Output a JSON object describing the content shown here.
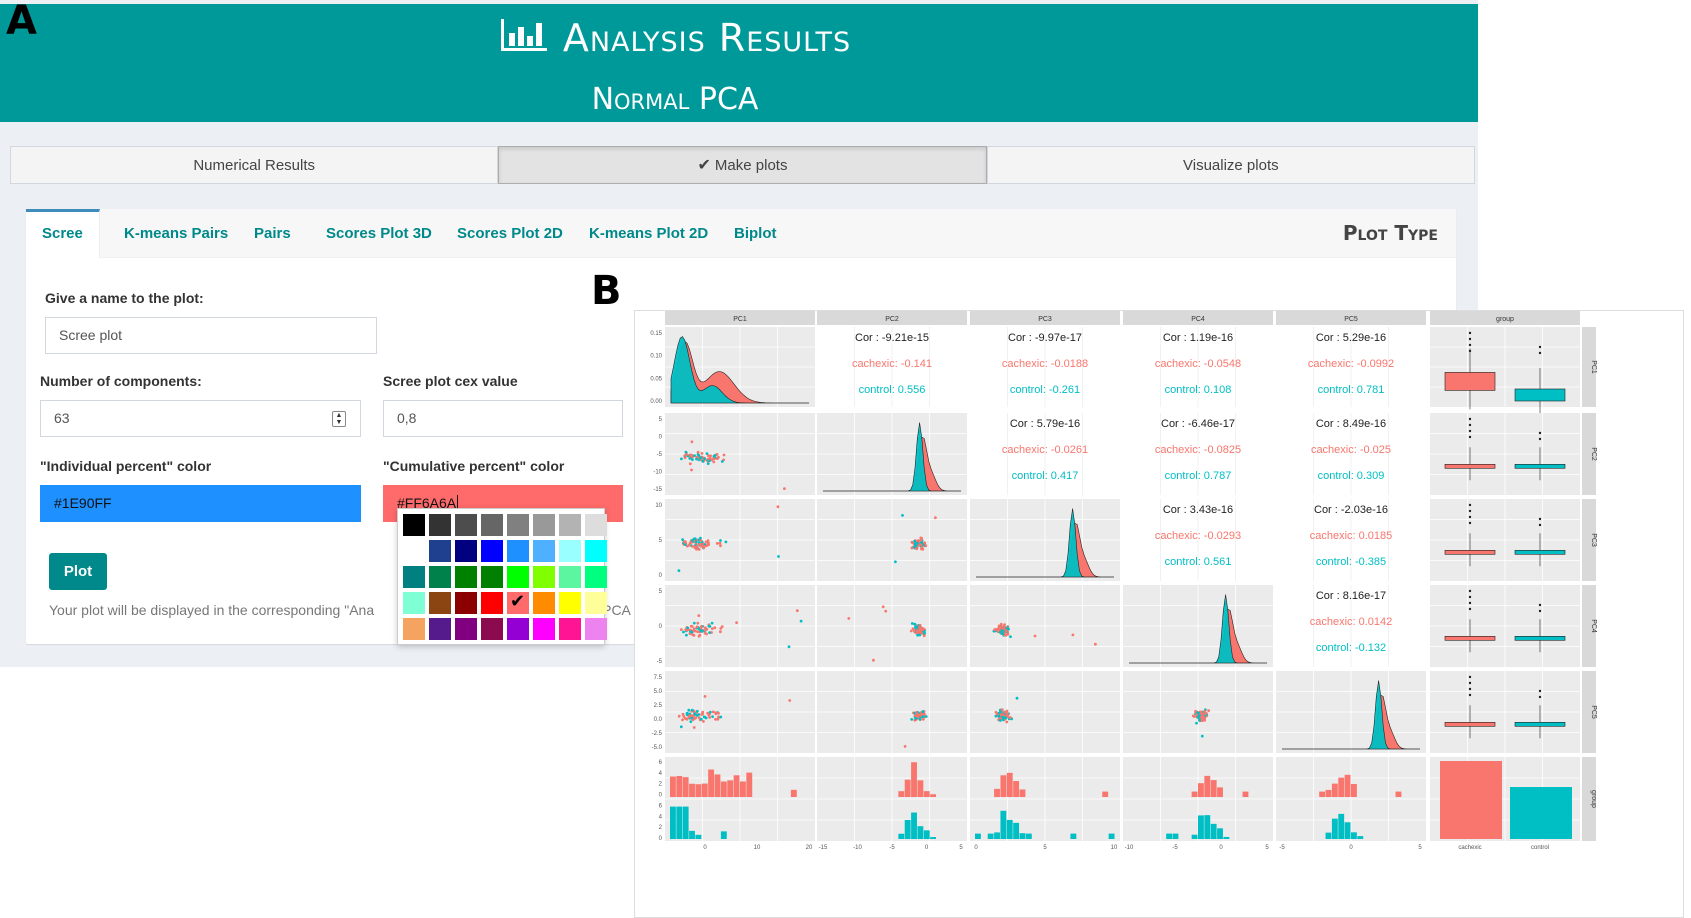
{
  "panel_labels": {
    "a": "A",
    "b": "B"
  },
  "header": {
    "title": "Analysis Results",
    "subtitle": "Normal PCA",
    "icon": "bar-chart-icon"
  },
  "top_tabs": [
    {
      "label": "Numerical Results",
      "active": false
    },
    {
      "label": "Make plots",
      "active": true,
      "icon": "check-icon"
    },
    {
      "label": "Visualize plots",
      "active": false
    }
  ],
  "plot_tabs": [
    {
      "label": "Scree",
      "active": true
    },
    {
      "label": "K-means Pairs",
      "active": false
    },
    {
      "label": "Pairs",
      "active": false
    },
    {
      "label": "Scores Plot 3D",
      "active": false
    },
    {
      "label": "Scores Plot 2D",
      "active": false
    },
    {
      "label": "K-means Plot 2D",
      "active": false
    },
    {
      "label": "Biplot",
      "active": false
    }
  ],
  "plot_type_title": "Plot Type",
  "form": {
    "name_label": "Give a name to the plot:",
    "name_value": "Scree plot",
    "components_label": "Number of components:",
    "components_value": "63",
    "cex_label": "Scree plot cex value",
    "cex_value": "0,8",
    "individual_color_label": "\"Individual percent\" color",
    "individual_color_value": "#1E90FF",
    "cumulative_color_label": "\"Cumulative percent\" color",
    "cumulative_color_value": "#FF6A6A",
    "plot_button": "Plot",
    "help_text_visible": "Your plot will be displayed in the corresponding \"Ana",
    "help_text_tail": "PCA"
  },
  "colors": {
    "header_bg": "#009999",
    "accent": "#00898a",
    "cachexic": "#F8766D",
    "control": "#00BFC4",
    "individual": "#1E90FF",
    "cumulative": "#FF6A6A"
  },
  "palette": {
    "selected": "#FF6A6A",
    "swatches": [
      "#000000",
      "#333333",
      "#4d4d4d",
      "#666666",
      "#808080",
      "#999999",
      "#b3b3b3",
      "#dddddd",
      "#ffffff",
      "#1f3f8f",
      "#000080",
      "#0000ff",
      "#1e90ff",
      "#4fb0ff",
      "#99ffff",
      "#00ffff",
      "#008080",
      "#00804a",
      "#008000",
      "#007f00",
      "#00ff00",
      "#7fff00",
      "#5cf5a0",
      "#00ff7f",
      "#7fffd4",
      "#8b4513",
      "#8b0000",
      "#ff0000",
      "#ff6a6a",
      "#ff8c00",
      "#ffff00",
      "#ffff99",
      "#f4a460",
      "#551a8b",
      "#800080",
      "#8b0a50",
      "#9400d3",
      "#ff00ff",
      "#ff1493",
      "#ee82ee"
    ]
  },
  "chart_data": {
    "type": "scatter",
    "title": "",
    "strip_labels": [
      "PC1",
      "PC2",
      "PC3",
      "PC4",
      "PC5",
      "group"
    ],
    "groups": [
      "cachexic",
      "control"
    ],
    "correlations": [
      {
        "pair": [
          "PC1",
          "PC2"
        ],
        "cor": "Cor : -9.21e-15",
        "cachexic": "cachexic: -0.141",
        "control": "control: 0.556"
      },
      {
        "pair": [
          "PC1",
          "PC3"
        ],
        "cor": "Cor : -9.97e-17",
        "cachexic": "cachexic: -0.0188",
        "control": "control: -0.261"
      },
      {
        "pair": [
          "PC1",
          "PC4"
        ],
        "cor": "Cor : 1.19e-16",
        "cachexic": "cachexic: -0.0548",
        "control": "control: 0.108"
      },
      {
        "pair": [
          "PC1",
          "PC5"
        ],
        "cor": "Cor : 5.29e-16",
        "cachexic": "cachexic: -0.0992",
        "control": "control: 0.781"
      },
      {
        "pair": [
          "PC2",
          "PC3"
        ],
        "cor": "Cor : 5.79e-16",
        "cachexic": "cachexic: -0.0261",
        "control": "control: 0.417"
      },
      {
        "pair": [
          "PC2",
          "PC4"
        ],
        "cor": "Cor : -6.46e-17",
        "cachexic": "cachexic: -0.0825",
        "control": "control: 0.787"
      },
      {
        "pair": [
          "PC2",
          "PC5"
        ],
        "cor": "Cor : 8.49e-16",
        "cachexic": "cachexic: -0.025",
        "control": "control: 0.309"
      },
      {
        "pair": [
          "PC3",
          "PC4"
        ],
        "cor": "Cor : 3.43e-16",
        "cachexic": "cachexic: -0.0293",
        "control": "control: 0.561"
      },
      {
        "pair": [
          "PC3",
          "PC5"
        ],
        "cor": "Cor : -2.03e-16",
        "cachexic": "cachexic: 0.0185",
        "control": "control: -0.385"
      },
      {
        "pair": [
          "PC4",
          "PC5"
        ],
        "cor": "Cor : 8.16e-17",
        "cachexic": "cachexic: 0.0142",
        "control": "control: -0.132"
      }
    ],
    "y_ticks": {
      "PC1": [
        "0.15",
        "0.10",
        "0.05",
        "0.00"
      ],
      "PC2": [
        "5",
        "0",
        "-5",
        "-10",
        "-15"
      ],
      "PC3": [
        "10",
        "5",
        "0"
      ],
      "PC4": [
        "5",
        "0",
        "-5"
      ],
      "PC5": [
        "7.5",
        "5.0",
        "2.5",
        "0.0",
        "-2.5",
        "-5.0"
      ],
      "group": [
        "6",
        "4",
        "2",
        "0",
        "6",
        "4",
        "2",
        "0"
      ]
    },
    "x_ticks": {
      "PC1": [
        "0",
        "10",
        "20"
      ],
      "PC2": [
        "-15",
        "-10",
        "-5",
        "0",
        "5"
      ],
      "PC3": [
        "0",
        "5",
        "10"
      ],
      "PC4": [
        "-10",
        "-5",
        "0",
        "5"
      ],
      "PC5": [
        "-5",
        "0",
        "5"
      ],
      "group": [
        "cachexic",
        "control"
      ]
    },
    "group_counts": {
      "cachexic": 47,
      "control": 30
    }
  }
}
